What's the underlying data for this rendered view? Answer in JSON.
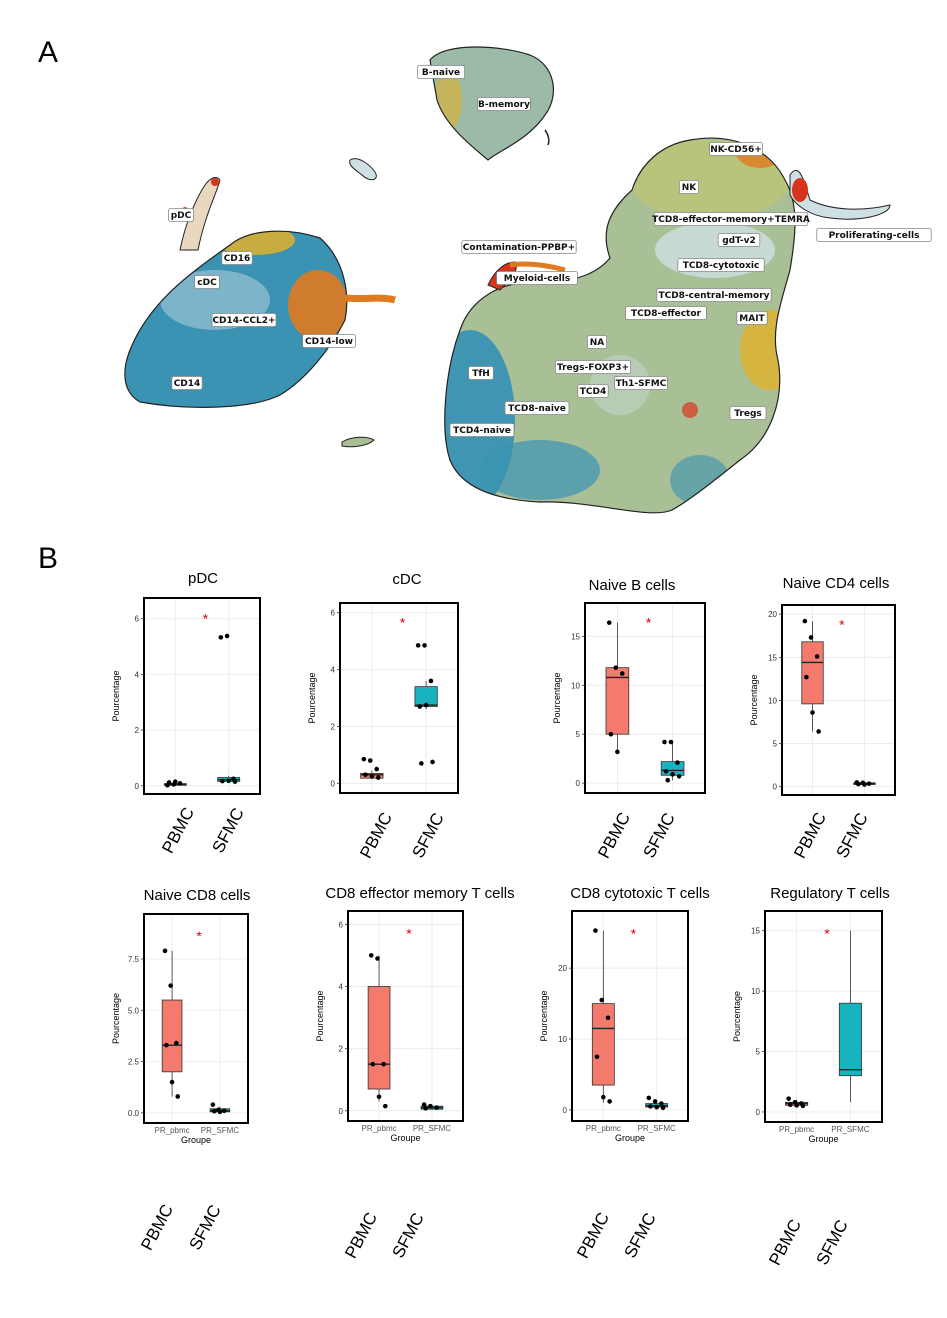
{
  "panel_a": {
    "letter": "A",
    "cluster_labels": [
      "B-naive",
      "B-memory",
      "NK-CD56+",
      "NK",
      "TCD8-effector-memory+TEMRA",
      "Proliferating-cells",
      "pDC",
      "CD16",
      "cDC",
      "CD14-CCL2+",
      "CD14-low",
      "CD14",
      "Contamination-PPBP+",
      "Myeloid-cells",
      "gdT-v2",
      "TCD8-cytotoxic",
      "TCD8-central-memory",
      "TCD8-effector",
      "MAIT",
      "NA",
      "Tregs-FOXP3+",
      "TfH",
      "TCD4",
      "Th1-SFMC",
      "TCD8-naive",
      "TCD4-naive",
      "Tregs"
    ],
    "colors": {
      "blue": "#3a93b3",
      "sage": "#a9bf96",
      "olive": "#b8c47a",
      "light": "#cfe0e4",
      "orange": "#e07a1f",
      "red": "#d8341c",
      "yellow": "#e0b12a",
      "outline": "#222222"
    }
  },
  "panel_b": {
    "letter": "B"
  },
  "styling": {
    "pbmc_color": "#f47a6e",
    "sfmc_color": "#17b4bf",
    "star_color": "#e00000"
  },
  "chart_data": [
    {
      "type": "box",
      "title": "pDC",
      "ylabel": "Pourcentage",
      "xlabel": "",
      "categories": [
        "PBMC",
        "SFMC"
      ],
      "big_categories": [
        "PBMC",
        "SFMC"
      ],
      "show_small_categories": false,
      "ylim": [
        -0.15,
        6.6
      ],
      "yticks": [
        0,
        2,
        4,
        6
      ],
      "yticklabels": [
        "0",
        "2",
        "4",
        "6"
      ],
      "significance": "*",
      "series": [
        {
          "name": "PBMC",
          "box": [
            0.0,
            0.02,
            0.04,
            0.08,
            0.14
          ],
          "points": [
            0.02,
            0.05,
            0.09,
            0.12,
            0.15
          ]
        },
        {
          "name": "SFMC",
          "box": [
            0.12,
            0.16,
            0.22,
            0.3,
            0.36
          ],
          "points": [
            5.33,
            5.38,
            0.25,
            0.17,
            0.18,
            0.15
          ]
        }
      ]
    },
    {
      "type": "box",
      "title": "cDC",
      "ylabel": "Pourcentage",
      "xlabel": "",
      "categories": [
        "PBMC",
        "SFMC"
      ],
      "big_categories": [
        "PBMC",
        "SFMC"
      ],
      "show_small_categories": false,
      "ylim": [
        -0.2,
        6.2
      ],
      "yticks": [
        0,
        2,
        4,
        6
      ],
      "yticklabels": [
        "0",
        "2",
        "4",
        "6"
      ],
      "significance": "*",
      "series": [
        {
          "name": "PBMC",
          "box": [
            0.15,
            0.18,
            0.3,
            0.35,
            0.45
          ],
          "points": [
            0.85,
            0.8,
            0.5,
            0.3,
            0.25,
            0.2
          ]
        },
        {
          "name": "SFMC",
          "box": [
            2.6,
            2.7,
            2.75,
            3.4,
            3.6
          ],
          "points": [
            4.85,
            4.85,
            3.6,
            2.7,
            2.75,
            0.75,
            0.7
          ]
        }
      ]
    },
    {
      "type": "box",
      "title": "Naive B cells",
      "ylabel": "Pourcentage",
      "xlabel": "",
      "categories": [
        "PBMC",
        "SFMC"
      ],
      "big_categories": [
        "PBMC",
        "SFMC"
      ],
      "show_small_categories": false,
      "ylim": [
        -0.6,
        18
      ],
      "yticks": [
        0,
        5,
        10,
        15
      ],
      "yticklabels": [
        "0",
        "5",
        "10",
        "15"
      ],
      "significance": "*",
      "series": [
        {
          "name": "PBMC",
          "box": [
            3.2,
            5,
            10.8,
            11.8,
            16.4
          ],
          "points": [
            16.4,
            11.8,
            11.2,
            5,
            3.2
          ]
        },
        {
          "name": "SFMC",
          "box": [
            0.3,
            0.8,
            1.3,
            2.2,
            4.2
          ],
          "points": [
            4.2,
            4.2,
            2.1,
            1.2,
            0.9,
            0.7,
            0.3
          ]
        }
      ]
    },
    {
      "type": "box",
      "title": "Naive CD4 cells",
      "ylabel": "Pourcentage",
      "xlabel": "",
      "categories": [
        "PBMC",
        "SFMC"
      ],
      "big_categories": [
        "PBMC",
        "SFMC"
      ],
      "show_small_categories": false,
      "ylim": [
        -0.5,
        20.6
      ],
      "yticks": [
        0,
        5,
        10,
        15,
        20
      ],
      "yticklabels": [
        "0",
        "5",
        "10",
        "15",
        "20"
      ],
      "significance": "*",
      "series": [
        {
          "name": "PBMC",
          "box": [
            6.4,
            9.6,
            14.4,
            16.8,
            19.2
          ],
          "points": [
            19.2,
            17.3,
            15.1,
            12.7,
            8.6,
            6.4
          ]
        },
        {
          "name": "SFMC",
          "box": [
            0.2,
            0.25,
            0.35,
            0.45,
            0.55
          ],
          "points": [
            0.5,
            0.45,
            0.35,
            0.3,
            0.25
          ]
        }
      ]
    },
    {
      "type": "box",
      "title": "Naive CD8 cells",
      "ylabel": "Pourcentage",
      "xlabel": "Groupe",
      "categories": [
        "PR_pbmc",
        "PR_SFMC"
      ],
      "big_categories": [
        "PBMC",
        "SFMC"
      ],
      "show_small_categories": true,
      "ylim": [
        -0.3,
        9.5
      ],
      "yticks": [
        0,
        2.5,
        5,
        7.5
      ],
      "yticklabels": [
        "0.0",
        "2.5",
        "5.0",
        "7.5"
      ],
      "significance": "*",
      "series": [
        {
          "name": "PBMC",
          "box": [
            0.8,
            2,
            3.3,
            5.5,
            7.9
          ],
          "points": [
            7.9,
            6.2,
            3.4,
            3.3,
            1.5,
            0.8
          ]
        },
        {
          "name": "SFMC",
          "box": [
            0,
            0.05,
            0.1,
            0.2,
            0.3
          ],
          "points": [
            0.4,
            0.15,
            0.1,
            0.08,
            0.05
          ]
        }
      ]
    },
    {
      "type": "box",
      "title": "CD8 effector memory T cells",
      "ylabel": "Pourcentage",
      "xlabel": "Groupe",
      "categories": [
        "PR_pbmc",
        "PR_SFMC"
      ],
      "big_categories": [
        "PBMC",
        "SFMC"
      ],
      "show_small_categories": true,
      "ylim": [
        -0.2,
        6.3
      ],
      "yticks": [
        0,
        2,
        4,
        6
      ],
      "yticklabels": [
        "0",
        "2",
        "4",
        "6"
      ],
      "significance": "*",
      "series": [
        {
          "name": "PBMC",
          "box": [
            0.3,
            0.7,
            1.5,
            4,
            5
          ],
          "points": [
            5,
            4.9,
            1.5,
            1.5,
            0.45,
            0.15
          ]
        },
        {
          "name": "SFMC",
          "box": [
            0.02,
            0.05,
            0.1,
            0.15,
            0.2
          ],
          "points": [
            0.2,
            0.15,
            0.1,
            0.08
          ]
        }
      ]
    },
    {
      "type": "box",
      "title": "CD8 cytotoxic T cells",
      "ylabel": "Pourcentage",
      "xlabel": "Groupe",
      "categories": [
        "PR_pbmc",
        "PR_SFMC"
      ],
      "big_categories": [
        "PBMC",
        "SFMC"
      ],
      "show_small_categories": true,
      "ylim": [
        -1,
        27.5
      ],
      "yticks": [
        0,
        10,
        20
      ],
      "yticklabels": [
        "0",
        "10",
        "20"
      ],
      "significance": "*",
      "series": [
        {
          "name": "PBMC",
          "box": [
            1,
            3.5,
            11.5,
            15,
            25.3
          ],
          "points": [
            25.3,
            15.5,
            13,
            7.5,
            1.8,
            1.2
          ]
        },
        {
          "name": "SFMC",
          "box": [
            0.2,
            0.4,
            0.6,
            0.9,
            1.2
          ],
          "points": [
            1.7,
            1.2,
            0.9,
            0.5,
            0.4,
            0.3
          ]
        }
      ]
    },
    {
      "type": "box",
      "title": "Regulatory T cells",
      "ylabel": "Pourcentage",
      "xlabel": "Groupe",
      "categories": [
        "PR_pbmc",
        "PR_SFMC"
      ],
      "big_categories": [
        "PBMC",
        "SFMC"
      ],
      "show_small_categories": true,
      "ylim": [
        -0.5,
        16.3
      ],
      "yticks": [
        0,
        5,
        10,
        15
      ],
      "yticklabels": [
        "0",
        "5",
        "10",
        "15"
      ],
      "significance": "*",
      "series": [
        {
          "name": "PBMC",
          "box": [
            0.4,
            0.55,
            0.7,
            0.8,
            1.0
          ],
          "points": [
            1.1,
            0.8,
            0.7,
            0.6,
            0.55,
            0.5
          ]
        },
        {
          "name": "SFMC",
          "box": [
            0.8,
            3,
            3.5,
            9,
            15
          ]
        }
      ]
    }
  ]
}
